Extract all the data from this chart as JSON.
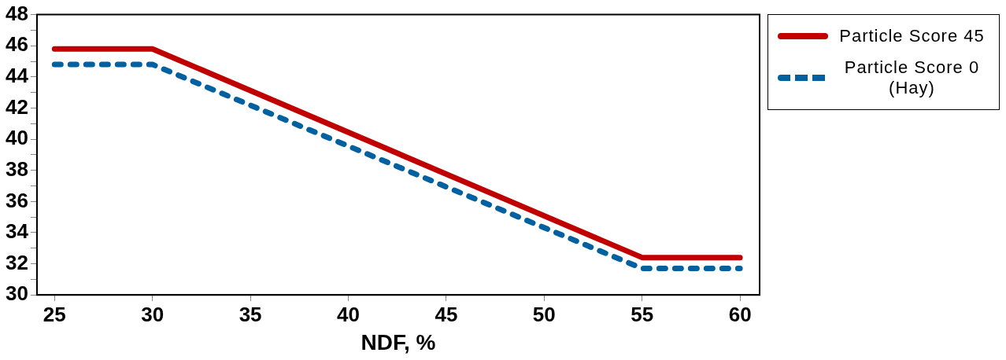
{
  "chart_data": {
    "type": "line",
    "xlabel": "NDF, %",
    "x": [
      25,
      30,
      55,
      60
    ],
    "series": [
      {
        "name": "Particle Score 45",
        "color": "#c00000",
        "line_style": "solid",
        "values": [
          45.8,
          45.8,
          32.4,
          32.4
        ]
      },
      {
        "name": "Particle Score 0 (Hay)",
        "color": "#0060a0",
        "line_style": "dotted",
        "values": [
          44.8,
          44.8,
          31.7,
          31.7
        ]
      }
    ],
    "xlim": [
      24.1,
      61
    ],
    "xticks": [
      25,
      30,
      35,
      40,
      45,
      50,
      55,
      60
    ],
    "ylim": [
      30,
      48
    ],
    "yticks": [
      30,
      {
        "value": 31,
        "label": null
      },
      32,
      {
        "value": 33,
        "label": null
      },
      34,
      {
        "value": 35,
        "label": null
      },
      36,
      {
        "value": 37,
        "label": null
      },
      38,
      {
        "value": 39,
        "label": null
      },
      40,
      {
        "value": 41,
        "label": null
      },
      42,
      {
        "value": 43,
        "label": null
      },
      44,
      {
        "value": 45,
        "label": null
      },
      46,
      {
        "value": 47,
        "label": null
      },
      48
    ],
    "grid": false,
    "legend": "right",
    "marker": "none"
  }
}
